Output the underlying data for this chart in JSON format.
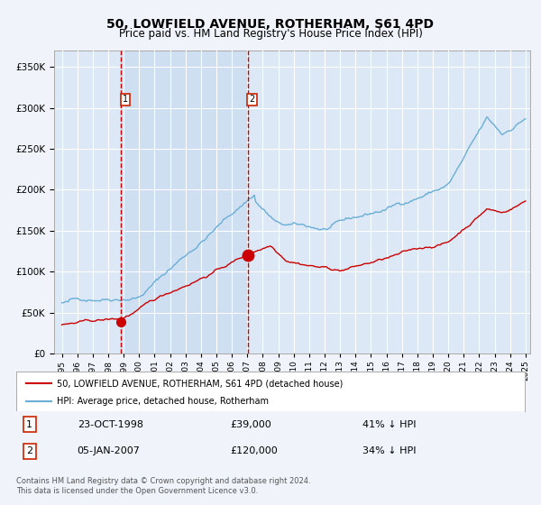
{
  "title": "50, LOWFIELD AVENUE, ROTHERHAM, S61 4PD",
  "subtitle": "Price paid vs. HM Land Registry's House Price Index (HPI)",
  "background_color": "#f0f4fa",
  "plot_bg_color": "#dce8f5",
  "grid_color": "#ffffff",
  "ylim": [
    0,
    360000
  ],
  "yticks": [
    0,
    50000,
    100000,
    150000,
    200000,
    250000,
    300000,
    350000
  ],
  "ytick_labels": [
    "£0",
    "£50K",
    "£100K",
    "£150K",
    "£200K",
    "£250K",
    "£300K",
    "£350K"
  ],
  "sale1_date": "23-OCT-1998",
  "sale1_price": 39000,
  "sale1_label": "1",
  "sale1_pct": "41% ↓ HPI",
  "sale2_date": "05-JAN-2007",
  "sale2_price": 120000,
  "sale2_label": "2",
  "sale2_pct": "34% ↓ HPI",
  "legend_house": "50, LOWFIELD AVENUE, ROTHERHAM, S61 4PD (detached house)",
  "legend_hpi": "HPI: Average price, detached house, Rotherham",
  "footer": "Contains HM Land Registry data © Crown copyright and database right 2024.\nThis data is licensed under the Open Government Licence v3.0.",
  "hpi_color": "#6baed6",
  "sale_color": "#cc0000",
  "marker_color": "#cc0000",
  "vline_color": "#cc0000",
  "shade_color": "#c6d9f0",
  "box_color": "#cc2200",
  "sale1_x": 1998.82,
  "sale2_x": 2007.02
}
